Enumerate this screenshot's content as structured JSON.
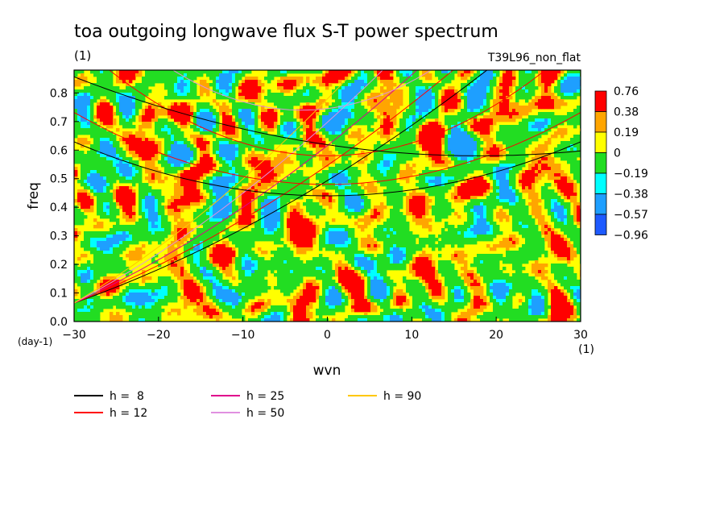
{
  "chart_data": {
    "type": "heatmap",
    "title": "toa outgoing longwave flux S-T power spectrum",
    "title_units": "(1)",
    "experiment": "T39L96_non_flat",
    "xlabel": "wvn",
    "xlabel_units": "(1)",
    "ylabel": "freq",
    "ylabel_units": "(day-1)",
    "xlim": [
      -30,
      30
    ],
    "ylim": [
      0,
      0.88
    ],
    "xticks": [
      -30,
      -20,
      -10,
      0,
      10,
      20,
      30
    ],
    "yticks": [
      0.0,
      0.1,
      0.2,
      0.3,
      0.4,
      0.5,
      0.6,
      0.7,
      0.8
    ],
    "colorbar": {
      "labels": [
        "0.76",
        "0.38",
        "0.19",
        "0",
        "-0.19",
        "-0.38",
        "-0.57",
        "-0.96"
      ],
      "colors": [
        "#ff0000",
        "#ffa500",
        "#ffff00",
        "#22dd22",
        "#00ffff",
        "#1e9fff",
        "#1e5aff"
      ]
    },
    "series": [
      {
        "name": "h =  8",
        "color": "#000000"
      },
      {
        "name": "h = 12",
        "color": "#ff0000"
      },
      {
        "name": "h = 25",
        "color": "#e0008c"
      },
      {
        "name": "h = 50",
        "color": "#e090e0"
      },
      {
        "name": "h = 90",
        "color": "#ffc800"
      }
    ]
  }
}
